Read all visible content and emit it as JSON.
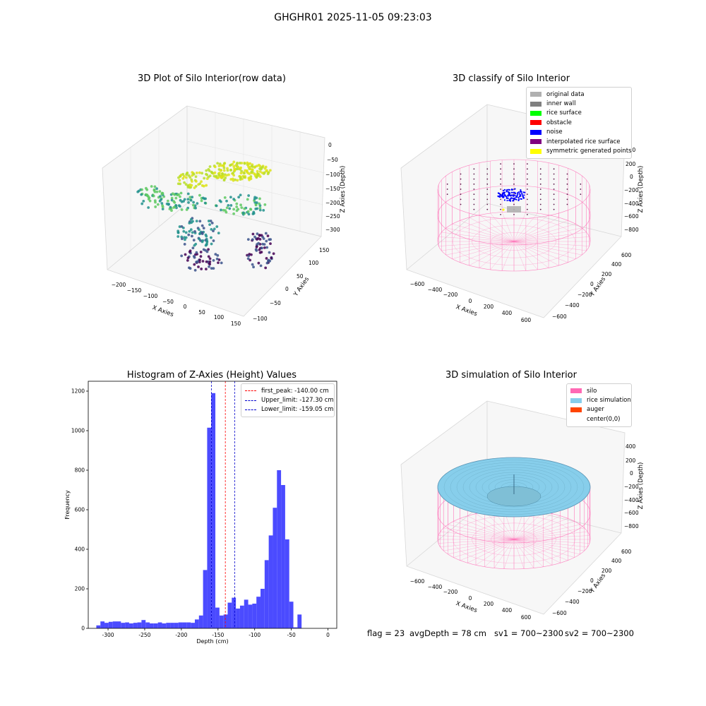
{
  "suptitle": "GHGHR01 2025-11-05 09:23:03",
  "footer": {
    "flag": "flag = 23",
    "avg": "avgDepth = 78 cm",
    "sv1": "sv1 = 700~2300",
    "sv2": "sv2 = 700~2300"
  },
  "colors": {
    "histogram": "#4b4bff",
    "peak_line": "#ff0000",
    "limit_line": "#0000cc",
    "silo": "#ff69b4",
    "rice": "#87ceeb",
    "auger": "#ff4500",
    "noise": "#0000ff"
  },
  "chart_data": [
    {
      "type": "scatter",
      "title": "3D Plot of Silo Interior(row data)",
      "xlabel": "X Axies",
      "ylabel": "Y Axies",
      "zlabel": "Z Axies (Depth)",
      "xticks": [
        "−200",
        "−150",
        "−100",
        "−50",
        "0",
        "50",
        "100",
        "150"
      ],
      "yticks": [
        "−100",
        "−50",
        "0",
        "50",
        "100",
        "150"
      ],
      "zticks": [
        "0",
        "−50",
        "−100",
        "−150",
        "−200",
        "−250",
        "−300"
      ],
      "xlim": [
        -230,
        160
      ],
      "ylim": [
        -110,
        160
      ],
      "zlim": [
        -320,
        5
      ],
      "colormap": "viridis"
    },
    {
      "type": "scatter",
      "title": "3D classify of Silo Interior",
      "xlabel": "X Axies",
      "ylabel": "Y Axies",
      "zlabel": "Z Axies (Depth)",
      "xticks": [
        "−600",
        "−400",
        "−200",
        "0",
        "200",
        "400",
        "600"
      ],
      "yticks": [
        "−600",
        "−400",
        "−200",
        "0",
        "200",
        "400",
        "600"
      ],
      "zticks": [
        "400",
        "200",
        "0",
        "−200",
        "−400",
        "−600",
        "−800"
      ],
      "legend_position": "top-right",
      "legend": [
        {
          "label": "original data",
          "color": "#b0b0b0"
        },
        {
          "label": "inner wall",
          "color": "#808080"
        },
        {
          "label": "rice surface",
          "color": "#00ff00"
        },
        {
          "label": "obstacle",
          "color": "#ff0000"
        },
        {
          "label": "noise",
          "color": "#0000ff"
        },
        {
          "label": "interpolated rice surface",
          "color": "#800080"
        },
        {
          "label": "symmetric generated points",
          "color": "#ffff00"
        }
      ]
    },
    {
      "type": "bar",
      "title": "Histogram of Z-Axies (Height) Values",
      "xlabel": "Depth (cm)",
      "ylabel": "Frequency",
      "xlim": [
        -327,
        12
      ],
      "ylim": [
        0,
        1250
      ],
      "xticks": [
        -300,
        -250,
        -200,
        -150,
        -100,
        -50,
        0
      ],
      "yticks": [
        0,
        200,
        400,
        600,
        800,
        1000,
        1200
      ],
      "bin_width": 5.6,
      "bin_start": -316,
      "values": [
        15,
        35,
        28,
        33,
        35,
        35,
        28,
        30,
        25,
        28,
        30,
        42,
        30,
        25,
        25,
        30,
        25,
        28,
        28,
        28,
        30,
        30,
        30,
        28,
        45,
        65,
        295,
        1015,
        1190,
        105,
        65,
        70,
        130,
        155,
        100,
        115,
        145,
        120,
        125,
        160,
        200,
        345,
        470,
        610,
        800,
        725,
        450,
        135,
        5,
        70
      ],
      "legend_position": "top-right",
      "lines": [
        {
          "label": "first_peak: -140.00 cm",
          "x": -140.0,
          "color": "#ff0000"
        },
        {
          "label": "Upper_limit: -127.30 cm",
          "x": -127.3,
          "color": "#0000cc"
        },
        {
          "label": "Lower_limit: -159.05 cm",
          "x": -159.05,
          "color": "#0000cc"
        }
      ]
    },
    {
      "type": "scatter",
      "title": "3D simulation of Silo Interior",
      "xlabel": "X Axies",
      "ylabel": "Y Axies",
      "zlabel": "Z Axies (Depth)",
      "xticks": [
        "−600",
        "−400",
        "−200",
        "0",
        "200",
        "400",
        "600"
      ],
      "yticks": [
        "−600",
        "−400",
        "−200",
        "0",
        "200",
        "400",
        "600"
      ],
      "zticks": [
        "400",
        "200",
        "0",
        "−200",
        "−400",
        "−600",
        "−800"
      ],
      "legend_position": "top-right",
      "legend": [
        {
          "label": "silo",
          "color": "#ff69b4"
        },
        {
          "label": "rice simulation",
          "color": "#87ceeb"
        },
        {
          "label": "auger",
          "color": "#ff4500"
        },
        {
          "label": "center(0,0)",
          "color": "#ffffff"
        }
      ]
    }
  ]
}
